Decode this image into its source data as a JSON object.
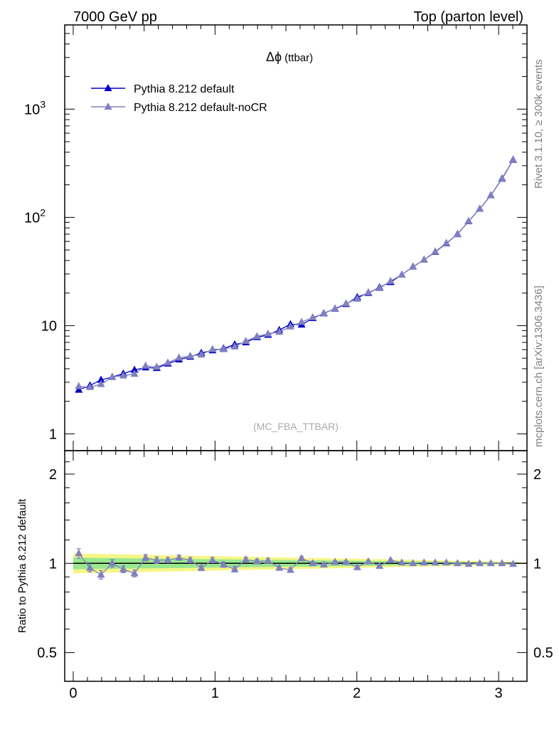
{
  "header": {
    "left": "7000 GeV pp",
    "right": "Top (parton level)"
  },
  "side_labels": {
    "rivet": "Rivet 3.1.10, ≥ 300k events",
    "mcplots": "mcplots.cern.ch [arXiv:1306.3436]"
  },
  "chart_data": [
    {
      "type": "line",
      "title": "Δϕ (ttbar)",
      "title_symbol": "Δϕ",
      "title_suffix": "(ttbar)",
      "watermark": "(MC_FBA_TTBAR)",
      "xlim": [
        -0.06,
        3.2
      ],
      "ylim": [
        0.7,
        6000
      ],
      "yscale": "log",
      "yticks": [
        {
          "value": 1,
          "label": "1"
        },
        {
          "value": 10,
          "label": "10"
        },
        {
          "value": 100,
          "label": "10",
          "sup": "2"
        },
        {
          "value": 1000,
          "label": "10",
          "sup": "3"
        }
      ],
      "legend_position": "top-left",
      "x": [
        0.039,
        0.118,
        0.196,
        0.275,
        0.353,
        0.432,
        0.51,
        0.589,
        0.667,
        0.746,
        0.825,
        0.903,
        0.982,
        1.06,
        1.139,
        1.217,
        1.296,
        1.374,
        1.453,
        1.532,
        1.61,
        1.689,
        1.767,
        1.846,
        1.924,
        2.003,
        2.081,
        2.16,
        2.238,
        2.317,
        2.396,
        2.474,
        2.553,
        2.631,
        2.71,
        2.788,
        2.867,
        2.945,
        3.024,
        3.102
      ],
      "series": [
        {
          "name": "Pythia 8.212 default",
          "color": "#0000cc",
          "marker": "triangle",
          "values": [
            2.55,
            2.8,
            3.15,
            3.35,
            3.6,
            3.9,
            4.1,
            4.05,
            4.45,
            4.85,
            5.15,
            5.6,
            5.9,
            6.15,
            6.7,
            7.0,
            7.8,
            8.2,
            9.1,
            10.3,
            10.2,
            11.7,
            13.0,
            14.3,
            15.8,
            18.3,
            20.0,
            22.6,
            25.2,
            29.5,
            35.0,
            40.5,
            48.0,
            57.5,
            70.0,
            92.0,
            120.0,
            160.0,
            228.0,
            340.0
          ]
        },
        {
          "name": "Pythia 8.212 default-noCR",
          "color": "#8080c0",
          "marker": "triangle",
          "values": [
            2.75,
            2.7,
            2.88,
            3.36,
            3.45,
            3.58,
            4.25,
            4.15,
            4.55,
            5.05,
            5.25,
            5.4,
            6.05,
            6.05,
            6.4,
            7.2,
            7.95,
            8.4,
            8.75,
            9.8,
            10.8,
            11.9,
            12.9,
            14.4,
            16.0,
            17.7,
            20.3,
            22.2,
            25.8,
            29.5,
            35.0,
            40.5,
            48.3,
            58.0,
            69.7,
            92.5,
            120.0,
            160.0,
            226.0,
            338.0
          ]
        }
      ]
    },
    {
      "type": "line",
      "ylabel": "Ratio to Pythia 8.212 default",
      "xlim": [
        -0.06,
        3.2
      ],
      "ylim": [
        0.4,
        2.4
      ],
      "yscale": "log",
      "yticks": [
        {
          "value": 0.5,
          "label": "0.5"
        },
        {
          "value": 1,
          "label": "1"
        },
        {
          "value": 2,
          "label": "2"
        }
      ],
      "xticks": [
        {
          "value": 0,
          "label": "0"
        },
        {
          "value": 1,
          "label": "1"
        },
        {
          "value": 2,
          "label": "2"
        },
        {
          "value": 3,
          "label": "3"
        }
      ],
      "reference": 1,
      "bands": {
        "yellow": {
          "color": "#f5f57a",
          "lo_start": 0.925,
          "hi_start": 1.08,
          "lo_end": 0.99,
          "hi_end": 1.012
        },
        "green": {
          "color": "#8fe68f",
          "lo_start": 0.955,
          "hi_start": 1.045,
          "lo_end": 0.995,
          "hi_end": 1.006
        }
      },
      "series": [
        {
          "name": "Pythia 8.212 default-noCR",
          "color": "#8080c0",
          "values": [
            1.08,
            0.965,
            0.915,
            1.0,
            0.955,
            0.925,
            1.045,
            1.025,
            1.025,
            1.045,
            1.025,
            0.965,
            1.025,
            0.99,
            0.955,
            1.03,
            1.015,
            1.02,
            0.965,
            0.95,
            1.04,
            1.0,
            0.99,
            1.01,
            1.01,
            0.97,
            1.015,
            0.98,
            1.025,
            1.005,
            1.0,
            1.005,
            1.005,
            1.005,
            1.0,
            0.995,
            1.0,
            1.0,
            1.0,
            0.995
          ],
          "errors": [
            0.04,
            0.03,
            0.03,
            0.03,
            0.025,
            0.025,
            0.025,
            0.025,
            0.02,
            0.02,
            0.02,
            0.02,
            0.02,
            0.02,
            0.02,
            0.018,
            0.018,
            0.018,
            0.015,
            0.015,
            0.015,
            0.012,
            0.012,
            0.01,
            0.01,
            0.01,
            0.008,
            0.008,
            0.008,
            0.007,
            0.006,
            0.006,
            0.005,
            0.005,
            0.005,
            0.004,
            0.004,
            0.003,
            0.003,
            0.003
          ]
        }
      ]
    }
  ]
}
